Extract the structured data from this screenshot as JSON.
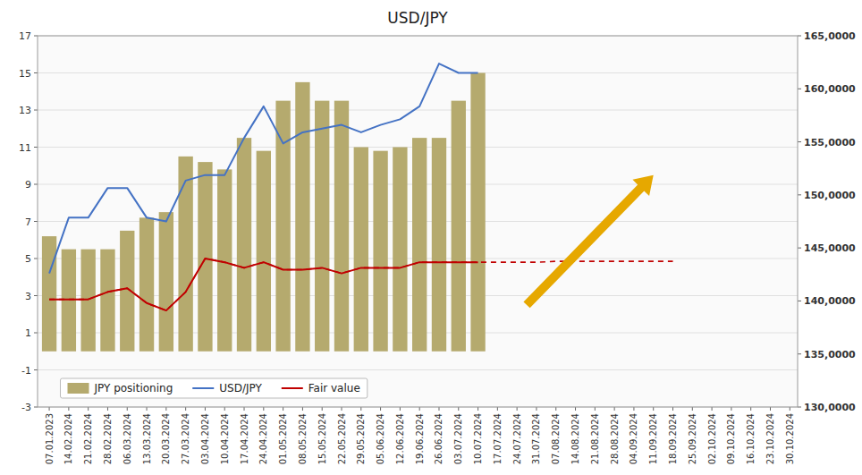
{
  "chart_data": {
    "type": "bar",
    "title": "USD/JPY",
    "categories": [
      "07.01.2023",
      "14.02.2024",
      "21.02.2024",
      "28.02.2024",
      "06.03.2024",
      "13.03.2024",
      "20.03.2024",
      "27.03.2024",
      "03.04.2024",
      "10.04.2024",
      "17.04.2024",
      "24.04.2024",
      "01.05.2024",
      "08.05.2024",
      "15.05.2024",
      "22.05.2024",
      "29.05.2024",
      "05.06.2024",
      "12.06.2024",
      "19.06.2024",
      "26.06.2024",
      "03.07.2024",
      "10.07.2024",
      "17.07.2024",
      "24.07.2024",
      "31.07.2024",
      "07.08.2024",
      "14.08.2024",
      "21.08.2024",
      "28.08.2024",
      "04.09.2024",
      "11.09.2024",
      "18.09.2024",
      "25.09.2024",
      "02.10.2024",
      "09.10.2024",
      "16.10.2024",
      "23.10.2024",
      "30.10.2024"
    ],
    "ylim": [
      -3,
      17
    ],
    "yticks": [
      -3,
      -1,
      1,
      3,
      5,
      7,
      9,
      11,
      13,
      15,
      17
    ],
    "y2lim": [
      130000,
      165000
    ],
    "y2ticks": [
      {
        "value": 130000,
        "label": "130,0000"
      },
      {
        "value": 135000,
        "label": "135,0000"
      },
      {
        "value": 140000,
        "label": "140,0000"
      },
      {
        "value": 145000,
        "label": "145,0000"
      },
      {
        "value": 150000,
        "label": "150,0000"
      },
      {
        "value": 155000,
        "label": "155,0000"
      },
      {
        "value": 160000,
        "label": "160,0000"
      },
      {
        "value": 165000,
        "label": "165,0000"
      }
    ],
    "grid": true,
    "legend": "lower left",
    "series": [
      {
        "name": "JPY positioning",
        "type": "bar",
        "color": "#b5aa6e",
        "values": [
          6.2,
          5.5,
          5.5,
          5.5,
          6.5,
          7.2,
          7.5,
          10.5,
          10.2,
          9.8,
          11.5,
          10.8,
          13.5,
          14.5,
          13.5,
          13.5,
          11.0,
          10.8,
          11.0,
          11.5,
          11.5,
          13.5,
          15.0,
          null,
          null,
          null,
          null,
          null,
          null,
          null,
          null,
          null,
          null,
          null,
          null,
          null,
          null,
          null,
          null
        ]
      },
      {
        "name": "USD/JPY",
        "type": "line",
        "color": "#4472c4",
        "line_style": "solid",
        "values": [
          4.2,
          7.2,
          7.2,
          8.8,
          8.8,
          7.2,
          7.0,
          9.2,
          9.5,
          9.5,
          11.5,
          13.2,
          11.2,
          11.8,
          12.0,
          12.2,
          11.8,
          12.2,
          12.5,
          13.2,
          15.5,
          15.0,
          15.0,
          null,
          null,
          null,
          null,
          null,
          null,
          null,
          null,
          null,
          null,
          null,
          null,
          null,
          null,
          null,
          null
        ]
      },
      {
        "name": "Fair value",
        "type": "line",
        "color": "#c00000",
        "line_style": "solid",
        "values": [
          2.8,
          2.8,
          2.8,
          3.2,
          3.4,
          2.6,
          2.2,
          3.2,
          5.0,
          4.8,
          4.5,
          4.8,
          4.4,
          4.4,
          4.5,
          4.2,
          4.5,
          4.5,
          4.5,
          4.8,
          4.8,
          4.8,
          4.8,
          null,
          null,
          null,
          null,
          null,
          null,
          null,
          null,
          null,
          null,
          null,
          null,
          null,
          null,
          null,
          null
        ]
      },
      {
        "type": "line",
        "color": "#c00000",
        "line_style": "dashed",
        "values": [
          2.8,
          2.8,
          2.8,
          3.2,
          3.4,
          2.6,
          2.2,
          3.2,
          5.0,
          4.8,
          4.5,
          4.8,
          4.4,
          4.4,
          4.5,
          4.2,
          4.5,
          4.5,
          4.5,
          4.8,
          4.8,
          4.8,
          4.8,
          4.8,
          4.8,
          4.8,
          4.85,
          4.85,
          4.85,
          4.85,
          4.85,
          4.85,
          4.85,
          null,
          null,
          null,
          null,
          null,
          null
        ]
      }
    ],
    "annotations": [
      {
        "type": "arrow",
        "x": 24.5,
        "y": 2.5,
        "x_end": 31.0,
        "y_end": 9.5,
        "color": "#e6a800"
      }
    ]
  }
}
